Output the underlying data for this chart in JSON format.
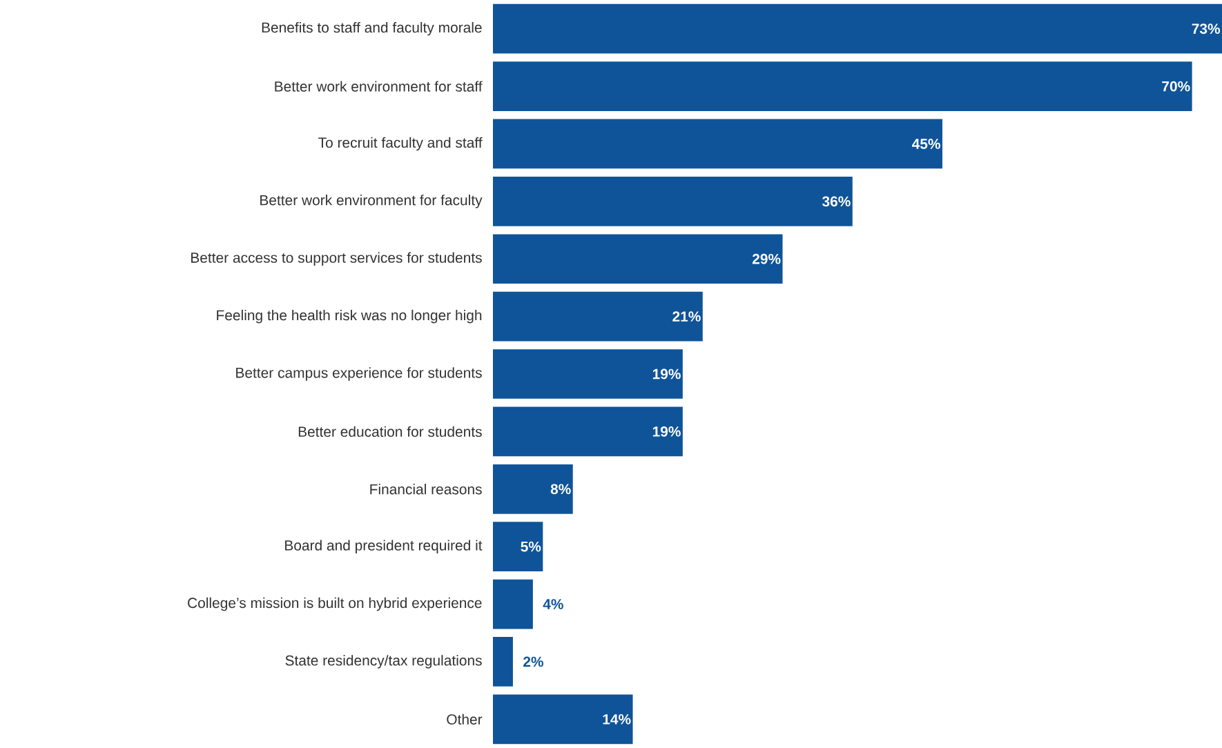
{
  "chart_data": {
    "type": "bar",
    "orientation": "horizontal",
    "color": "#0f5499",
    "categories": [
      "Benefits to staff and faculty morale",
      "Better work environment for staff",
      "To recruit faculty and staff",
      "Better work environment for faculty",
      "Better access to support services for students",
      "Feeling the health risk was no longer high",
      "Better campus experience for students",
      "Better education for students",
      "Financial reasons",
      "Board and president required it",
      "College’s mission is built on hybrid experience",
      "State residency/tax regulations",
      "Other"
    ],
    "values": [
      73,
      70,
      45,
      36,
      29,
      21,
      19,
      19,
      8,
      5,
      4,
      2,
      14
    ],
    "value_labels": [
      "73%",
      "70%",
      "45%",
      "36%",
      "29%",
      "21%",
      "19%",
      "19%",
      "8%",
      "5%",
      "4%",
      "2%",
      "14%"
    ]
  }
}
